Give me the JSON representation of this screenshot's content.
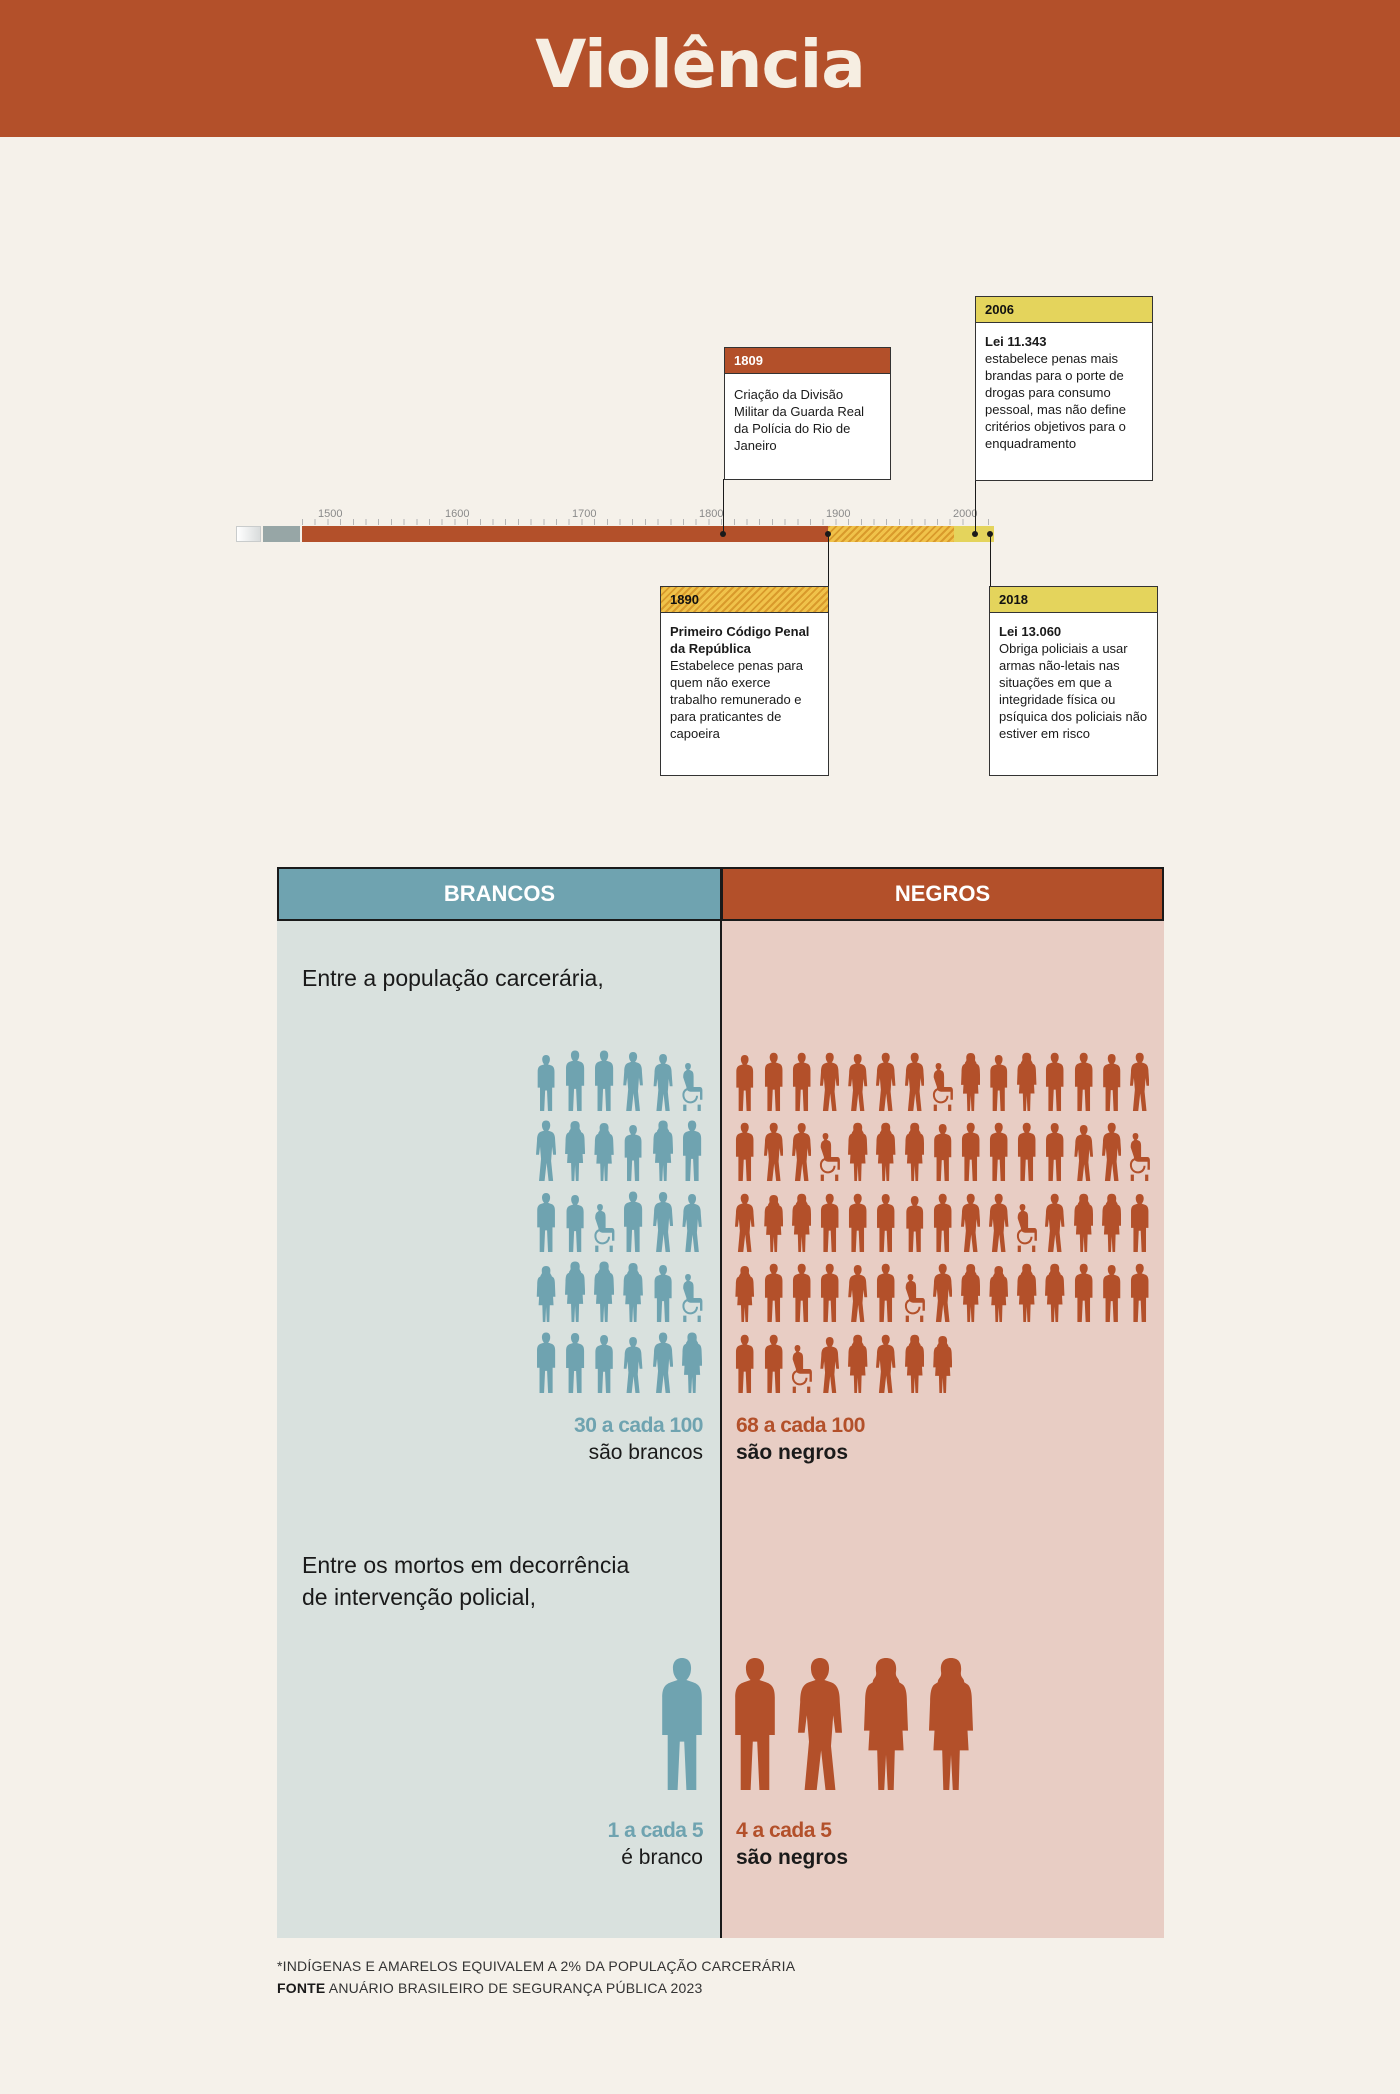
{
  "title": "Violência",
  "timeline": {
    "year_labels": [
      "1500",
      "1600",
      "1700",
      "1800",
      "1900",
      "2000"
    ],
    "events": [
      {
        "year": "1809",
        "title": "",
        "text": "Criação da Divisão Militar da Guarda Real da Polícia do Rio de Janeiro"
      },
      {
        "year": "1890",
        "title": "Primeiro Código Penal da República",
        "text": "Estabelece penas para quem não exerce trabalho remunerado e para praticantes de capoeira"
      },
      {
        "year": "2006",
        "title": "Lei 11.343",
        "text": "estabelece penas mais brandas para o porte de drogas para consumo pessoal, mas não define critérios objetivos para o enquadramento"
      },
      {
        "year": "2018",
        "title": "Lei 13.060",
        "text": "Obriga policiais a usar armas não-letais nas situações em que a integridade física ou psíquica dos policiais não estiver em risco"
      }
    ]
  },
  "comparison": {
    "left_header": "BRANCOS",
    "right_header": "NEGROS",
    "prison_intro": "Entre a população carcerária,",
    "prison_white_count": 30,
    "prison_black_count": 68,
    "prison_white_num": "30 a cada 100",
    "prison_white_sub": "são brancos",
    "prison_black_num": "68 a cada 100",
    "prison_black_sub": "são negros",
    "deaths_intro_line1": "Entre os mortos em decorrência",
    "deaths_intro_line2": "de intervenção policial,",
    "deaths_white_count": 1,
    "deaths_black_count": 4,
    "deaths_white_num": "1 a cada 5",
    "deaths_white_sub": "é branco",
    "deaths_black_num": "4 a cada 5",
    "deaths_black_sub": "são negros"
  },
  "colors": {
    "brancos": "#6fa3b0",
    "negros": "#b3502a",
    "header": "#b3502a",
    "left_bg": "#d9e1de",
    "right_bg": "#e8cdc4"
  },
  "footnote": {
    "note": "*INDÍGENAS E AMARELOS EQUIVALEM A 2% DA POPULAÇÃO CARCERÁRIA",
    "source_label": "FONTE",
    "source_text": "ANUÁRIO BRASILEIRO DE SEGURANÇA PÚBLICA 2023"
  }
}
